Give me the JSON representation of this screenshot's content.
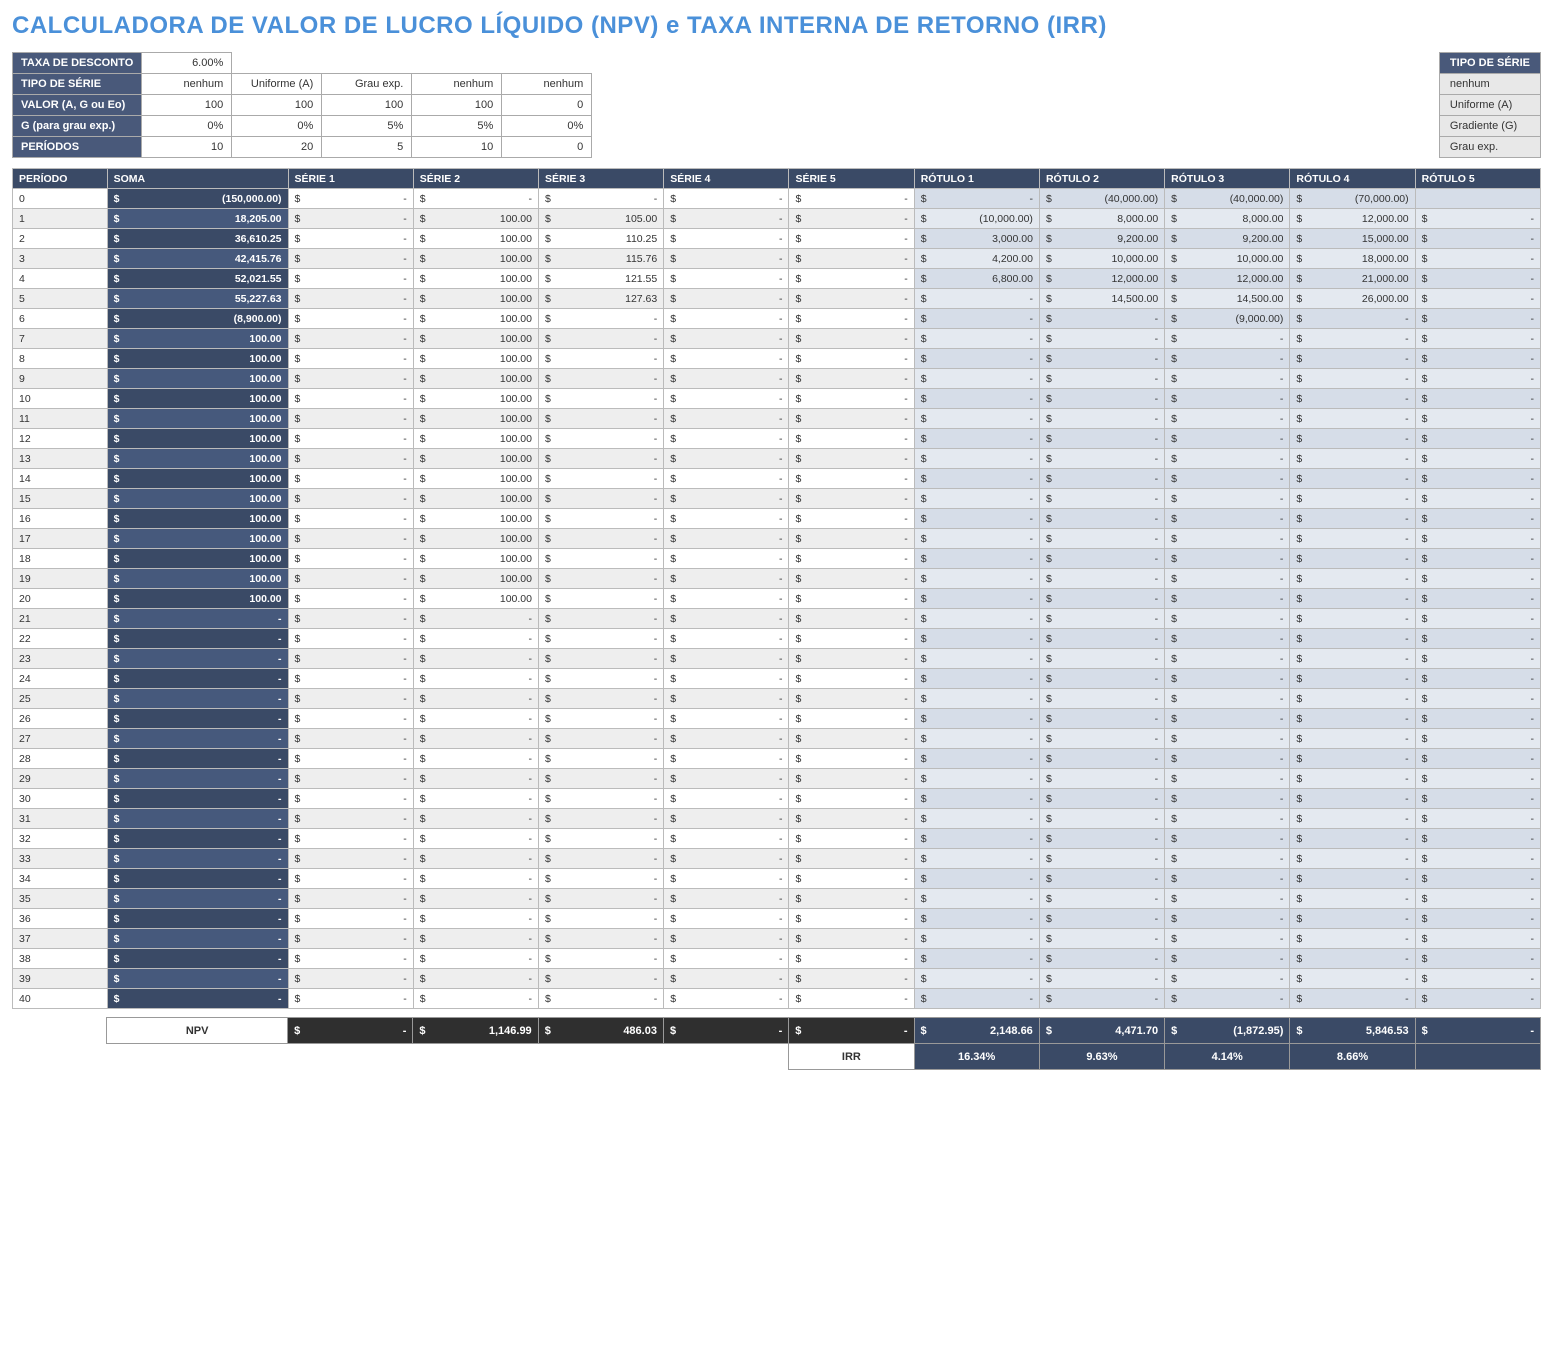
{
  "title": "CALCULADORA DE VALOR DE LUCRO LÍQUIDO (NPV) e TAXA INTERNA DE RETORNO (IRR)",
  "params": {
    "rows": [
      {
        "label": "TAXA DE DESCONTO",
        "cells": [
          "6.00%",
          "",
          "",
          "",
          ""
        ],
        "single": true
      },
      {
        "label": "TIPO DE SÉRIE",
        "cells": [
          "nenhum",
          "Uniforme (A)",
          "Grau exp.",
          "nenhum",
          "nenhum"
        ]
      },
      {
        "label": "VALOR (A, G ou Eo)",
        "cells": [
          "100",
          "100",
          "100",
          "100",
          "0"
        ]
      },
      {
        "label": "G (para grau exp.)",
        "cells": [
          "0%",
          "0%",
          "5%",
          "5%",
          "0%"
        ]
      },
      {
        "label": "PERÍODOS",
        "cells": [
          "10",
          "20",
          "5",
          "10",
          "0"
        ]
      }
    ]
  },
  "legend": {
    "header": "TIPO DE SÉRIE",
    "items": [
      "nenhum",
      "Uniforme (A)",
      "Gradiente (G)",
      "Grau exp."
    ]
  },
  "main": {
    "headers": [
      "PERÍODO",
      "SOMA",
      "SÉRIE 1",
      "SÉRIE 2",
      "SÉRIE 3",
      "SÉRIE 4",
      "SÉRIE 5",
      "RÓTULO 1",
      "RÓTULO 2",
      "RÓTULO 3",
      "RÓTULO 4",
      "RÓTULO 5"
    ],
    "periods": 41,
    "soma": [
      "(150,000.00)",
      "18,205.00",
      "36,610.25",
      "42,415.76",
      "52,021.55",
      "55,227.63",
      "(8,900.00)",
      "100.00",
      "100.00",
      "100.00",
      "100.00",
      "100.00",
      "100.00",
      "100.00",
      "100.00",
      "100.00",
      "100.00",
      "100.00",
      "100.00",
      "100.00",
      "100.00",
      "-",
      "-",
      "-",
      "-",
      "-",
      "-",
      "-",
      "-",
      "-",
      "-",
      "-",
      "-",
      "-",
      "-",
      "-",
      "-",
      "-",
      "-",
      "-",
      "-"
    ],
    "serie1": [
      "-",
      "-",
      "-",
      "-",
      "-",
      "-",
      "-",
      "-",
      "-",
      "-",
      "-",
      "-",
      "-",
      "-",
      "-",
      "-",
      "-",
      "-",
      "-",
      "-",
      "-",
      "-",
      "-",
      "-",
      "-",
      "-",
      "-",
      "-",
      "-",
      "-",
      "-",
      "-",
      "-",
      "-",
      "-",
      "-",
      "-",
      "-",
      "-",
      "-",
      "-"
    ],
    "serie2": [
      "-",
      "100.00",
      "100.00",
      "100.00",
      "100.00",
      "100.00",
      "100.00",
      "100.00",
      "100.00",
      "100.00",
      "100.00",
      "100.00",
      "100.00",
      "100.00",
      "100.00",
      "100.00",
      "100.00",
      "100.00",
      "100.00",
      "100.00",
      "100.00",
      "-",
      "-",
      "-",
      "-",
      "-",
      "-",
      "-",
      "-",
      "-",
      "-",
      "-",
      "-",
      "-",
      "-",
      "-",
      "-",
      "-",
      "-",
      "-",
      "-"
    ],
    "serie3": [
      "-",
      "105.00",
      "110.25",
      "115.76",
      "121.55",
      "127.63",
      "-",
      "-",
      "-",
      "-",
      "-",
      "-",
      "-",
      "-",
      "-",
      "-",
      "-",
      "-",
      "-",
      "-",
      "-",
      "-",
      "-",
      "-",
      "-",
      "-",
      "-",
      "-",
      "-",
      "-",
      "-",
      "-",
      "-",
      "-",
      "-",
      "-",
      "-",
      "-",
      "-",
      "-",
      "-"
    ],
    "serie4": [
      "-",
      "-",
      "-",
      "-",
      "-",
      "-",
      "-",
      "-",
      "-",
      "-",
      "-",
      "-",
      "-",
      "-",
      "-",
      "-",
      "-",
      "-",
      "-",
      "-",
      "-",
      "-",
      "-",
      "-",
      "-",
      "-",
      "-",
      "-",
      "-",
      "-",
      "-",
      "-",
      "-",
      "-",
      "-",
      "-",
      "-",
      "-",
      "-",
      "-",
      "-"
    ],
    "serie5": [
      "-",
      "-",
      "-",
      "-",
      "-",
      "-",
      "-",
      "-",
      "-",
      "-",
      "-",
      "-",
      "-",
      "-",
      "-",
      "-",
      "-",
      "-",
      "-",
      "-",
      "-",
      "-",
      "-",
      "-",
      "-",
      "-",
      "-",
      "-",
      "-",
      "-",
      "-",
      "-",
      "-",
      "-",
      "-",
      "-",
      "-",
      "-",
      "-",
      "-",
      "-"
    ],
    "rot1": [
      "-",
      "(10,000.00)",
      "3,000.00",
      "4,200.00",
      "6,800.00",
      "-",
      "-",
      "-",
      "-",
      "-",
      "-",
      "-",
      "-",
      "-",
      "-",
      "-",
      "-",
      "-",
      "-",
      "-",
      "-",
      "-",
      "-",
      "-",
      "-",
      "-",
      "-",
      "-",
      "-",
      "-",
      "-",
      "-",
      "-",
      "-",
      "-",
      "-",
      "-",
      "-",
      "-",
      "-",
      "-"
    ],
    "rot2": [
      "(40,000.00)",
      "8,000.00",
      "9,200.00",
      "10,000.00",
      "12,000.00",
      "14,500.00",
      "-",
      "-",
      "-",
      "-",
      "-",
      "-",
      "-",
      "-",
      "-",
      "-",
      "-",
      "-",
      "-",
      "-",
      "-",
      "-",
      "-",
      "-",
      "-",
      "-",
      "-",
      "-",
      "-",
      "-",
      "-",
      "-",
      "-",
      "-",
      "-",
      "-",
      "-",
      "-",
      "-",
      "-",
      "-"
    ],
    "rot3": [
      "(40,000.00)",
      "8,000.00",
      "9,200.00",
      "10,000.00",
      "12,000.00",
      "14,500.00",
      "(9,000.00)",
      "-",
      "-",
      "-",
      "-",
      "-",
      "-",
      "-",
      "-",
      "-",
      "-",
      "-",
      "-",
      "-",
      "-",
      "-",
      "-",
      "-",
      "-",
      "-",
      "-",
      "-",
      "-",
      "-",
      "-",
      "-",
      "-",
      "-",
      "-",
      "-",
      "-",
      "-",
      "-",
      "-",
      "-"
    ],
    "rot4": [
      "(70,000.00)",
      "12,000.00",
      "15,000.00",
      "18,000.00",
      "21,000.00",
      "26,000.00",
      "-",
      "-",
      "-",
      "-",
      "-",
      "-",
      "-",
      "-",
      "-",
      "-",
      "-",
      "-",
      "-",
      "-",
      "-",
      "-",
      "-",
      "-",
      "-",
      "-",
      "-",
      "-",
      "-",
      "-",
      "-",
      "-",
      "-",
      "-",
      "-",
      "-",
      "-",
      "-",
      "-",
      "-",
      "-"
    ],
    "rot5": [
      "",
      "-",
      "-",
      "-",
      "-",
      "-",
      "-",
      "-",
      "-",
      "-",
      "-",
      "-",
      "-",
      "-",
      "-",
      "-",
      "-",
      "-",
      "-",
      "-",
      "-",
      "-",
      "-",
      "-",
      "-",
      "-",
      "-",
      "-",
      "-",
      "-",
      "-",
      "-",
      "-",
      "-",
      "-",
      "-",
      "-",
      "-",
      "-",
      "-",
      "-"
    ]
  },
  "footer": {
    "npv_label": "NPV",
    "irr_label": "IRR",
    "npv": [
      "-",
      "1,146.99",
      "486.03",
      "-",
      "-",
      "2,148.66",
      "4,471.70",
      "(1,872.95)",
      "5,846.53",
      "-"
    ],
    "irr": [
      "16.34%",
      "9.63%",
      "4.14%",
      "8.66%",
      ""
    ]
  },
  "colors": {
    "title": "#4a90d9",
    "header_dark": "#49597a",
    "table_header": "#3a4a66",
    "soma_bg": "#3a4a66",
    "rotulo_bg": "#d6dde8",
    "rotulo_bg_alt": "#e4e9f0",
    "footer_dark": "#2f2f2f"
  }
}
